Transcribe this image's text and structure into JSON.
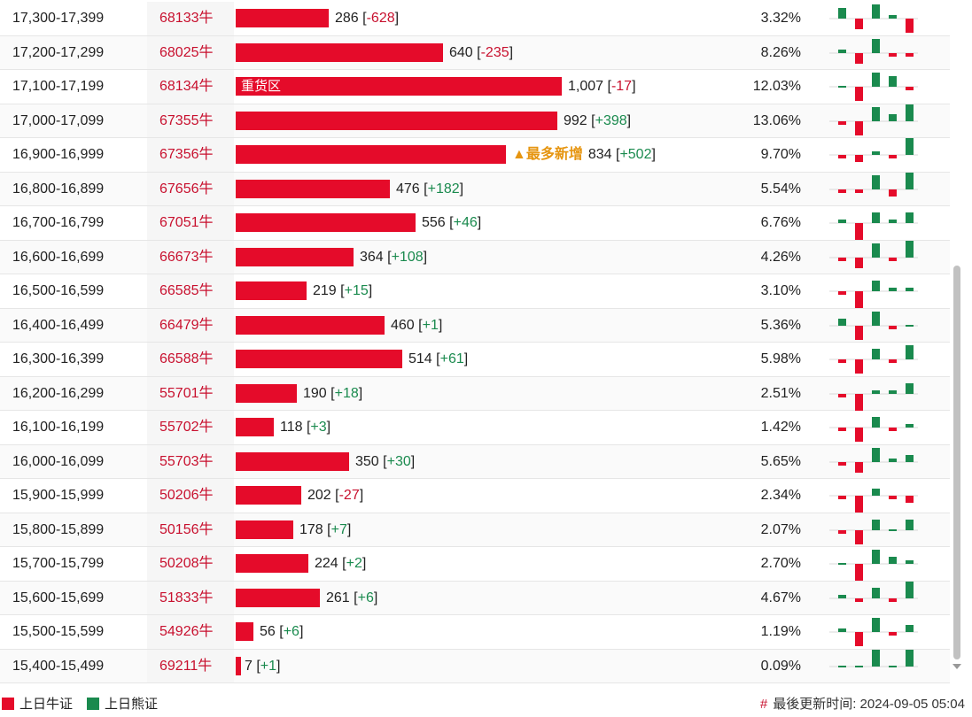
{
  "colors": {
    "bull": "#e50b2a",
    "bear": "#1a8a4e",
    "code": "#c8102e",
    "tag": "#e69510"
  },
  "max_value": 1007,
  "rows": [
    {
      "range": "17,300-17,399",
      "code": "68133牛",
      "value": 286,
      "value_text": "286",
      "change": "-628",
      "pct": "3.32%",
      "spark": [
        3,
        -3,
        4,
        1,
        -4
      ]
    },
    {
      "range": "17,200-17,299",
      "code": "68025牛",
      "value": 640,
      "value_text": "640",
      "change": "-235",
      "pct": "8.26%",
      "spark": [
        1,
        -3,
        4,
        -1,
        -1
      ]
    },
    {
      "range": "17,100-17,199",
      "code": "68134牛",
      "value": 1007,
      "value_text": "1,007",
      "change": "-17",
      "pct": "12.03%",
      "label": "重货区",
      "spark": [
        0,
        -4,
        4,
        3,
        -1
      ]
    },
    {
      "range": "17,000-17,099",
      "code": "67355牛",
      "value": 992,
      "value_text": "992",
      "change": "+398",
      "pct": "13.06%",
      "spark": [
        -1,
        -4,
        4,
        2,
        5
      ]
    },
    {
      "range": "16,900-16,999",
      "code": "67356牛",
      "value": 834,
      "value_text": "834",
      "change": "+502",
      "pct": "9.70%",
      "tag": "▲最多新增",
      "spark": [
        -1,
        -2,
        1,
        -1,
        5
      ]
    },
    {
      "range": "16,800-16,899",
      "code": "67656牛",
      "value": 476,
      "value_text": "476",
      "change": "+182",
      "pct": "5.54%",
      "spark": [
        -1,
        -1,
        4,
        -2,
        5
      ]
    },
    {
      "range": "16,700-16,799",
      "code": "67051牛",
      "value": 556,
      "value_text": "556",
      "change": "+46",
      "pct": "6.76%",
      "spark": [
        1,
        -5,
        3,
        1,
        3
      ]
    },
    {
      "range": "16,600-16,699",
      "code": "66673牛",
      "value": 364,
      "value_text": "364",
      "change": "+108",
      "pct": "4.26%",
      "spark": [
        -1,
        -3,
        4,
        -1,
        5
      ]
    },
    {
      "range": "16,500-16,599",
      "code": "66585牛",
      "value": 219,
      "value_text": "219",
      "change": "+15",
      "pct": "3.10%",
      "spark": [
        -1,
        -5,
        3,
        1,
        1
      ]
    },
    {
      "range": "16,400-16,499",
      "code": "66479牛",
      "value": 460,
      "value_text": "460",
      "change": "+1",
      "pct": "5.36%",
      "spark": [
        2,
        -4,
        4,
        -1,
        0
      ]
    },
    {
      "range": "16,300-16,399",
      "code": "66588牛",
      "value": 514,
      "value_text": "514",
      "change": "+61",
      "pct": "5.98%",
      "spark": [
        -1,
        -4,
        3,
        -1,
        4
      ]
    },
    {
      "range": "16,200-16,299",
      "code": "55701牛",
      "value": 190,
      "value_text": "190",
      "change": "+18",
      "pct": "2.51%",
      "spark": [
        -1,
        -5,
        1,
        1,
        3
      ]
    },
    {
      "range": "16,100-16,199",
      "code": "55702牛",
      "value": 118,
      "value_text": "118",
      "change": "+3",
      "pct": "1.42%",
      "spark": [
        -1,
        -4,
        3,
        -1,
        1
      ]
    },
    {
      "range": "16,000-16,099",
      "code": "55703牛",
      "value": 350,
      "value_text": "350",
      "change": "+30",
      "pct": "5.65%",
      "spark": [
        -1,
        -3,
        4,
        1,
        2
      ]
    },
    {
      "range": "15,900-15,999",
      "code": "50206牛",
      "value": 202,
      "value_text": "202",
      "change": "-27",
      "pct": "2.34%",
      "spark": [
        -1,
        -5,
        2,
        -1,
        -2
      ]
    },
    {
      "range": "15,800-15,899",
      "code": "50156牛",
      "value": 178,
      "value_text": "178",
      "change": "+7",
      "pct": "2.07%",
      "spark": [
        -1,
        -4,
        3,
        0,
        3
      ]
    },
    {
      "range": "15,700-15,799",
      "code": "50208牛",
      "value": 224,
      "value_text": "224",
      "change": "+2",
      "pct": "2.70%",
      "spark": [
        0,
        -5,
        4,
        2,
        1
      ]
    },
    {
      "range": "15,600-15,699",
      "code": "51833牛",
      "value": 261,
      "value_text": "261",
      "change": "+6",
      "pct": "4.67%",
      "spark": [
        1,
        -1,
        3,
        -1,
        5
      ]
    },
    {
      "range": "15,500-15,599",
      "code": "54926牛",
      "value": 56,
      "value_text": "56",
      "change": "+6",
      "pct": "1.19%",
      "spark": [
        1,
        -4,
        4,
        -1,
        2
      ]
    },
    {
      "range": "15,400-15,499",
      "code": "69211牛",
      "value": 7,
      "value_text": "7",
      "change": "+1",
      "pct": "0.09%",
      "spark": [
        0,
        0,
        5,
        0,
        5
      ]
    }
  ],
  "legend": {
    "bull_label": "上日牛证",
    "bear_label": "上日熊证"
  },
  "updated": {
    "hash": "#",
    "text": "最後更新时间: 2024-09-05 05:04"
  }
}
